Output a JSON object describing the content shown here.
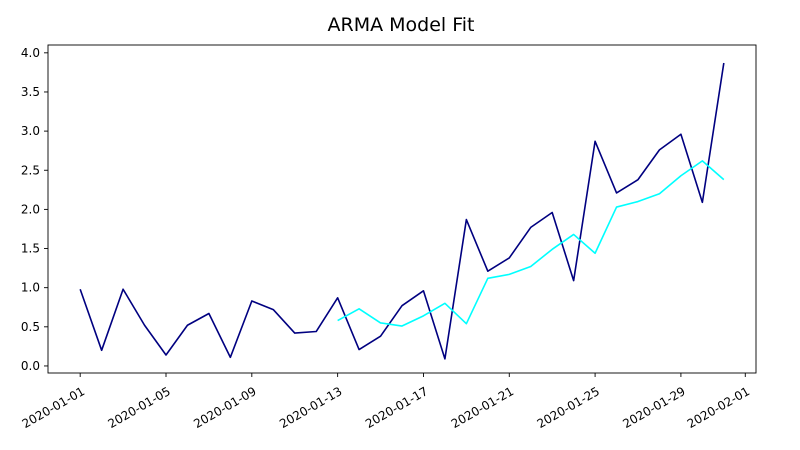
{
  "chart_data": {
    "type": "line",
    "title": "ARMA Model Fit",
    "xlabel": "",
    "ylabel": "",
    "x_range": [
      "2020-01-01",
      "2020-01-31"
    ],
    "ylim": [
      -0.09,
      4.1
    ],
    "x_ticks": [
      "2020-01-01",
      "2020-01-05",
      "2020-01-09",
      "2020-01-13",
      "2020-01-17",
      "2020-01-21",
      "2020-01-25",
      "2020-01-29",
      "2020-02-01"
    ],
    "y_ticks": [
      "0.0",
      "0.5",
      "1.0",
      "1.5",
      "2.0",
      "2.5",
      "3.0",
      "3.5",
      "4.0"
    ],
    "grid": false,
    "legend": "none",
    "series": [
      {
        "color": "#000080",
        "x": [
          "2020-01-01",
          "2020-01-02",
          "2020-01-03",
          "2020-01-04",
          "2020-01-05",
          "2020-01-06",
          "2020-01-07",
          "2020-01-08",
          "2020-01-09",
          "2020-01-10",
          "2020-01-11",
          "2020-01-12",
          "2020-01-13",
          "2020-01-14",
          "2020-01-15",
          "2020-01-16",
          "2020-01-17",
          "2020-01-18",
          "2020-01-19",
          "2020-01-20",
          "2020-01-21",
          "2020-01-22",
          "2020-01-23",
          "2020-01-24",
          "2020-01-25",
          "2020-01-26",
          "2020-01-27",
          "2020-01-28",
          "2020-01-29",
          "2020-01-30",
          "2020-01-31"
        ],
        "values": [
          0.98,
          0.2,
          0.98,
          0.52,
          0.14,
          0.52,
          0.67,
          0.11,
          0.83,
          0.72,
          0.42,
          0.44,
          0.87,
          0.21,
          0.38,
          0.77,
          0.96,
          0.09,
          1.87,
          1.21,
          1.38,
          1.77,
          1.96,
          1.09,
          2.87,
          2.21,
          2.38,
          2.76,
          2.96,
          2.09,
          3.87
        ]
      },
      {
        "color": "#00ffff",
        "x": [
          "2020-01-13",
          "2020-01-14",
          "2020-01-15",
          "2020-01-16",
          "2020-01-17",
          "2020-01-18",
          "2020-01-19",
          "2020-01-20",
          "2020-01-21",
          "2020-01-22",
          "2020-01-23",
          "2020-01-24",
          "2020-01-25",
          "2020-01-26",
          "2020-01-27",
          "2020-01-28",
          "2020-01-29",
          "2020-01-30",
          "2020-01-31"
        ],
        "values": [
          0.58,
          0.73,
          0.55,
          0.51,
          0.64,
          0.8,
          0.54,
          1.12,
          1.17,
          1.27,
          1.49,
          1.68,
          1.44,
          2.03,
          2.1,
          2.2,
          2.43,
          2.62,
          2.38
        ]
      }
    ]
  }
}
